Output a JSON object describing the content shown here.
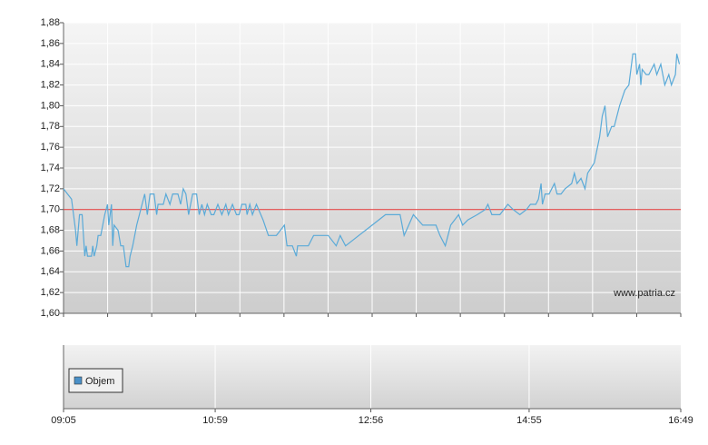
{
  "chart_data": {
    "type": "line",
    "x": [
      "09:05",
      "09:08",
      "09:11",
      "09:12",
      "09:14",
      "09:15",
      "09:17",
      "09:19",
      "09:21",
      "09:22",
      "09:23",
      "09:26",
      "09:27",
      "09:28",
      "09:30",
      "09:31",
      "09:33",
      "09:36",
      "09:38",
      "09:39",
      "09:41",
      "09:42",
      "09:43",
      "09:46",
      "09:48",
      "09:50",
      "09:52",
      "09:54",
      "09:55",
      "09:57",
      "10:00",
      "10:04",
      "10:06",
      "10:08",
      "10:10",
      "10:13",
      "10:15",
      "10:16",
      "10:20",
      "10:22",
      "10:25",
      "10:27",
      "10:31",
      "10:33",
      "10:35",
      "10:37",
      "10:39",
      "10:42",
      "10:45",
      "10:46",
      "10:47",
      "10:49",
      "10:51",
      "10:53",
      "10:56",
      "10:58",
      "11:01",
      "11:04",
      "11:07",
      "11:09",
      "11:12",
      "11:15",
      "11:17",
      "11:19",
      "11:22",
      "11:23",
      "11:25",
      "11:27",
      "11:30",
      "11:35",
      "11:39",
      "11:45",
      "11:51",
      "11:53",
      "11:57",
      "12:00",
      "12:01",
      "12:09",
      "12:13",
      "12:24",
      "12:30",
      "12:33",
      "12:37",
      "12:47",
      "12:57",
      "13:07",
      "13:18",
      "13:21",
      "13:28",
      "13:35",
      "13:45",
      "13:48",
      "13:52",
      "13:56",
      "14:02",
      "14:05",
      "14:09",
      "14:16",
      "14:22",
      "14:24",
      "14:27",
      "14:33",
      "14:39",
      "14:43",
      "14:48",
      "14:53",
      "14:56",
      "15:00",
      "15:02",
      "15:04",
      "15:05",
      "15:07",
      "15:10",
      "15:14",
      "15:16",
      "15:19",
      "15:22",
      "15:27",
      "15:29",
      "15:31",
      "15:34",
      "15:37",
      "15:39",
      "15:44",
      "15:48",
      "15:50",
      "15:52",
      "15:54",
      "15:57",
      "15:59",
      "16:03",
      "16:07",
      "16:10",
      "16:13",
      "16:15",
      "16:16",
      "16:18",
      "16:19",
      "16:20",
      "16:23",
      "16:25",
      "16:29",
      "16:31",
      "16:34",
      "16:37",
      "16:40",
      "16:42",
      "16:45",
      "16:46",
      "16:48"
    ],
    "series": [
      {
        "color": "#5aaad8",
        "values": [
          1.72,
          1.715,
          1.71,
          1.7,
          1.68,
          1.665,
          1.695,
          1.695,
          1.655,
          1.665,
          1.655,
          1.655,
          1.665,
          1.655,
          1.665,
          1.675,
          1.675,
          1.695,
          1.705,
          1.685,
          1.705,
          1.665,
          1.685,
          1.68,
          1.665,
          1.665,
          1.645,
          1.645,
          1.655,
          1.665,
          1.685,
          1.705,
          1.715,
          1.695,
          1.715,
          1.715,
          1.695,
          1.705,
          1.705,
          1.715,
          1.705,
          1.715,
          1.715,
          1.705,
          1.72,
          1.715,
          1.695,
          1.715,
          1.715,
          1.705,
          1.695,
          1.705,
          1.695,
          1.705,
          1.695,
          1.695,
          1.705,
          1.695,
          1.705,
          1.695,
          1.705,
          1.695,
          1.695,
          1.705,
          1.705,
          1.695,
          1.705,
          1.695,
          1.705,
          1.69,
          1.675,
          1.675,
          1.685,
          1.665,
          1.665,
          1.655,
          1.665,
          1.665,
          1.675,
          1.675,
          1.665,
          1.675,
          1.665,
          1.675,
          1.685,
          1.695,
          1.695,
          1.675,
          1.695,
          1.685,
          1.685,
          1.675,
          1.665,
          1.685,
          1.695,
          1.685,
          1.69,
          1.695,
          1.7,
          1.705,
          1.695,
          1.695,
          1.705,
          1.7,
          1.695,
          1.7,
          1.705,
          1.705,
          1.71,
          1.725,
          1.705,
          1.715,
          1.715,
          1.725,
          1.715,
          1.715,
          1.72,
          1.725,
          1.735,
          1.725,
          1.73,
          1.72,
          1.735,
          1.745,
          1.77,
          1.79,
          1.8,
          1.77,
          1.78,
          1.78,
          1.8,
          1.815,
          1.82,
          1.85,
          1.85,
          1.83,
          1.84,
          1.82,
          1.835,
          1.83,
          1.83,
          1.84,
          1.83,
          1.84,
          1.82,
          1.83,
          1.82,
          1.83,
          1.85,
          1.84
        ]
      }
    ],
    "ylim": [
      1.6,
      1.88
    ],
    "yticks": [
      {
        "value": 1.6,
        "label": "1,60"
      },
      {
        "value": 1.62,
        "label": "1,62"
      },
      {
        "value": 1.64,
        "label": "1,64"
      },
      {
        "value": 1.66,
        "label": "1,66"
      },
      {
        "value": 1.68,
        "label": "1,68"
      },
      {
        "value": 1.7,
        "label": "1,70"
      },
      {
        "value": 1.72,
        "label": "1,72"
      },
      {
        "value": 1.74,
        "label": "1,74"
      },
      {
        "value": 1.76,
        "label": "1,76"
      },
      {
        "value": 1.78,
        "label": "1,78"
      },
      {
        "value": 1.8,
        "label": "1,80"
      },
      {
        "value": 1.82,
        "label": "1,82"
      },
      {
        "value": 1.84,
        "label": "1,84"
      },
      {
        "value": 1.86,
        "label": "1,86"
      },
      {
        "value": 1.88,
        "label": "1,88"
      }
    ],
    "xticks": [
      "09:05",
      "10:59",
      "12:56",
      "14:55",
      "16:49"
    ],
    "reference_line": {
      "value": 1.7,
      "color": "#e03030"
    },
    "watermark": "www.patria.cz",
    "volume": {
      "name": "Objem",
      "color": "#4a90c8"
    },
    "grid": true
  }
}
